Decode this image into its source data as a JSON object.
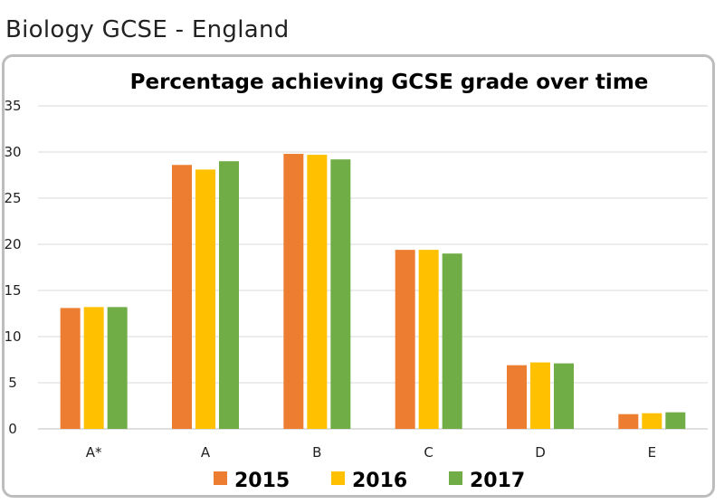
{
  "header": {
    "title": "Biology GCSE - England"
  },
  "chart_data": {
    "type": "bar",
    "title": "Percentage achieving GCSE grade over time",
    "xlabel": "",
    "ylabel": "",
    "ylim": [
      0,
      35
    ],
    "yticks": [
      0,
      5,
      10,
      15,
      20,
      25,
      30,
      35
    ],
    "grid": true,
    "legend_position": "bottom",
    "categories": [
      "A*",
      "A",
      "B",
      "C",
      "D",
      "E"
    ],
    "series": [
      {
        "name": "2015",
        "color": "#ED7D31",
        "values": [
          13.1,
          28.6,
          29.8,
          19.4,
          6.9,
          1.6
        ]
      },
      {
        "name": "2016",
        "color": "#FFC000",
        "values": [
          13.2,
          28.1,
          29.7,
          19.4,
          7.2,
          1.7
        ]
      },
      {
        "name": "2017",
        "color": "#70AD47",
        "values": [
          13.2,
          29.0,
          29.2,
          19.0,
          7.1,
          1.8
        ]
      }
    ]
  }
}
